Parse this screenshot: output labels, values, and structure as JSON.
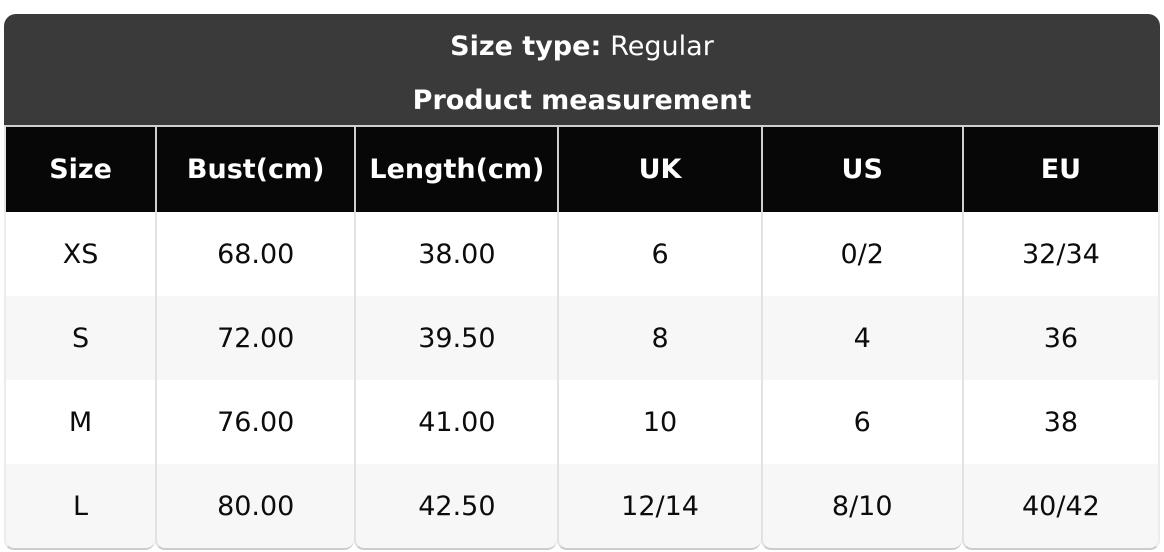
{
  "header": {
    "size_type_label": "Size type:",
    "size_type_value": "Regular",
    "subtitle": "Product measurement"
  },
  "table": {
    "columns": [
      "Size",
      "Bust(cm)",
      "Length(cm)",
      "UK",
      "US",
      "EU"
    ],
    "rows": [
      [
        "XS",
        "68.00",
        "38.00",
        "6",
        "0/2",
        "32/34"
      ],
      [
        "S",
        "72.00",
        "39.50",
        "8",
        "4",
        "36"
      ],
      [
        "M",
        "76.00",
        "41.00",
        "10",
        "6",
        "38"
      ],
      [
        "L",
        "80.00",
        "42.50",
        "12/14",
        "8/10",
        "40/42"
      ]
    ]
  },
  "colors": {
    "topbar_bg": "#3a3a3a",
    "header_row_bg": "#070707",
    "row_bg": "#ffffff",
    "row_alt_bg": "#f7f7f7",
    "separator": "#e2e2e2",
    "header_separator": "#cfcfcf",
    "header_text": "#ffffff",
    "body_text": "#0c0c0c"
  }
}
